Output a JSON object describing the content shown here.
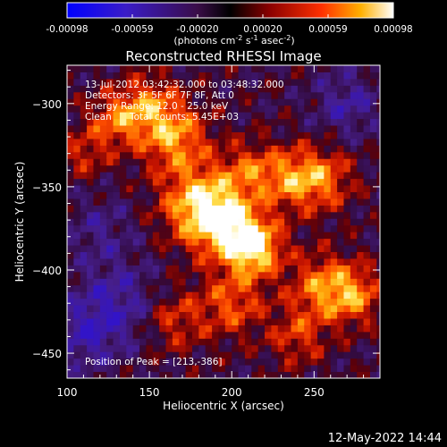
{
  "colorbar": {
    "ticks": [
      "-0.00098",
      "-0.00059",
      "-0.00020",
      "0.00020",
      "0.00059",
      "0.00098"
    ],
    "units": "(photons cm",
    "units_sup1": "-2",
    "units_mid": " s",
    "units_sup2": "-1",
    "units_end": " asec",
    "units_sup3": "-2",
    "units_close": ")",
    "range": [
      -0.00098,
      0.00098
    ]
  },
  "chart_data": {
    "type": "heatmap",
    "title": "Reconstructed RHESSI Image",
    "xlabel": "Heliocentric X (arcsec)",
    "ylabel": "Heliocentric Y (arcsec)",
    "xlim": [
      100,
      290
    ],
    "ylim": [
      -465,
      -277
    ],
    "x_ticks": [
      100,
      150,
      200,
      250
    ],
    "y_ticks": [
      -300,
      -350,
      -400,
      -450
    ],
    "peak": [
      213,
      -386
    ],
    "annotations": [
      "13-Jul-2012 03:42:32.000 to 03:48:32.000",
      "Detectors: 3F 5F 6F 7F 8F, Att 0",
      "Energy Range: 12.0 - 25.0 keV",
      "Clean",
      "Total counts: 5.45E+03",
      "Position of Peak = [213,-386]"
    ]
  },
  "footer": {
    "timestamp": "12-May-2022 14:44"
  },
  "colors": {
    "background": "#000000",
    "text": "#ffffff"
  }
}
